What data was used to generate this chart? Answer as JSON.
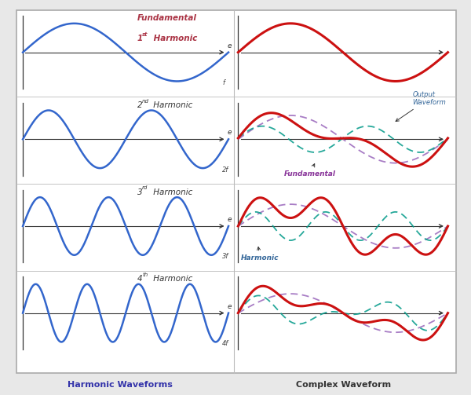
{
  "fig_width": 6.0,
  "fig_height": 5.03,
  "dpi": 100,
  "bg_color": "#e8e8e8",
  "panel_bg": "#f8f8f8",
  "blue_color": "#3366cc",
  "red_color": "#cc1111",
  "purple_dash_color": "#9966bb",
  "teal_dash_color": "#009988",
  "title_left": "Harmonic Waveforms",
  "title_right": "Complex Waveform",
  "left_titles": [
    "Fundamental\n1st Harmonic",
    "2nd Harmonic",
    "3rd Harmonic",
    "4th Harmonic"
  ],
  "left_superscripts": [
    "st",
    "nd",
    "rd",
    "th"
  ],
  "left_freq_labels": [
    "f",
    "2f",
    "3f",
    "4f"
  ],
  "fund_title_color": "#aa3344"
}
